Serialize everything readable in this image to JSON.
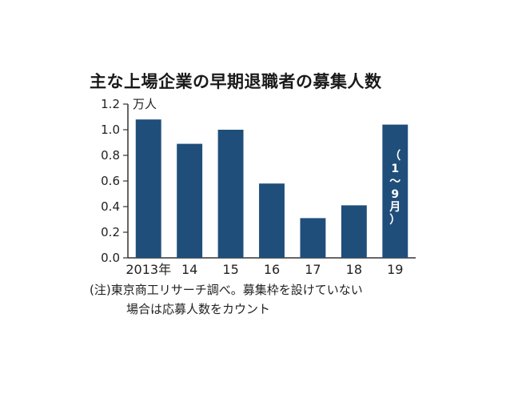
{
  "chart_data": {
    "type": "bar",
    "title": "主な上場企業の早期退職者の募集人数",
    "unit_label": "万人",
    "categories": [
      "2013年",
      "14",
      "15",
      "16",
      "17",
      "18",
      "19"
    ],
    "values": [
      1.08,
      0.89,
      1.0,
      0.58,
      0.31,
      0.41,
      1.04
    ],
    "ylim": [
      0,
      1.2
    ],
    "yticks": [
      "0.0",
      "0.2",
      "0.4",
      "0.6",
      "0.8",
      "1.0",
      "1.2"
    ],
    "bar_annotation": {
      "category": "19",
      "text": "（1〜9月）"
    },
    "note_line1": "(注)東京商工リサーチ調べ。募集枠を設けていない",
    "note_line2": "場合は応募人数をカウント",
    "grid": false,
    "legend": "none",
    "colors": {
      "bar": "#1f4e7a",
      "axis": "#333333"
    }
  }
}
